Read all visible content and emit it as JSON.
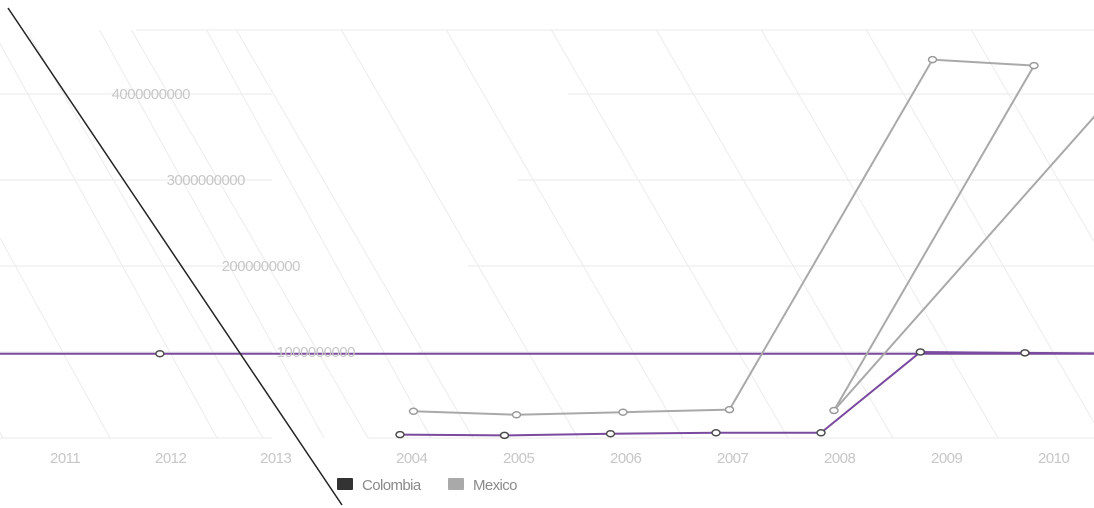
{
  "chart_data": {
    "type": "line",
    "title": "",
    "xlabel": "",
    "ylabel": "",
    "y_ticks": [
      1000000000,
      2000000000,
      3000000000,
      4000000000
    ],
    "ylim": [
      0,
      4500000000
    ],
    "grid": true,
    "legend_position": "bottom-left",
    "panels": [
      {
        "name": "right",
        "categories": [
          "2004",
          "2005",
          "2006",
          "2007",
          "2008",
          "2009",
          "2010"
        ]
      },
      {
        "name": "left",
        "categories": [
          "2011",
          "2012",
          "2013"
        ]
      }
    ],
    "series": [
      {
        "name": "Colombia",
        "color": "#7a4a9e",
        "points": [
          {
            "x": 2004.0,
            "y": 40000000
          },
          {
            "x": 2005.0,
            "y": 30000000
          },
          {
            "x": 2006.0,
            "y": 50000000
          },
          {
            "x": 2007.0,
            "y": 60000000
          },
          {
            "x": 2008.0,
            "y": 60000000
          },
          {
            "x": 2008.5,
            "y": 1000000000
          },
          {
            "x": 2009.5,
            "y": 990000000
          },
          {
            "x": 2010.5,
            "y": 980000000
          },
          {
            "x": 2011.5,
            "y": 980000000
          }
        ]
      },
      {
        "name": "Mexico",
        "color": "#a9a9a9",
        "points": [
          {
            "x": 2004.0,
            "y": 310000000
          },
          {
            "x": 2005.0,
            "y": 270000000
          },
          {
            "x": 2006.0,
            "y": 300000000
          },
          {
            "x": 2007.0,
            "y": 330000000
          },
          {
            "x": 2007.0,
            "y": 4400000000
          },
          {
            "x": 2008.0,
            "y": 4330000000
          },
          {
            "x": 2008.0,
            "y": 320000000
          },
          {
            "x": 2009.0,
            "y": 4310000000
          },
          {
            "x": 2010.0,
            "y": 4310000000
          }
        ]
      }
    ]
  }
}
